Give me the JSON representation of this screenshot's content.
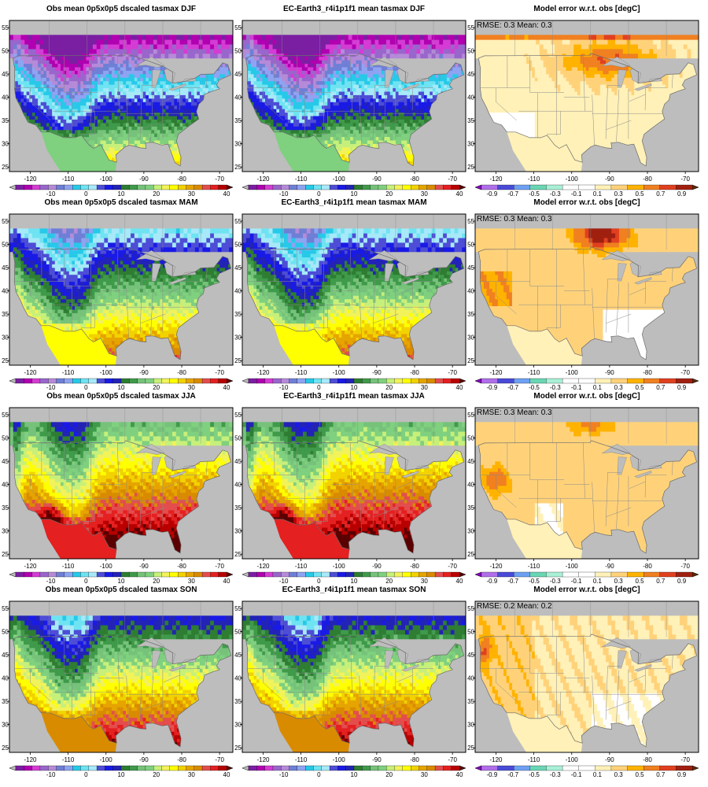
{
  "figure": {
    "background_colors": {
      "land_gray": "#bdbdbd",
      "border_gray": "#7f7f7f",
      "frame": "#000000"
    },
    "x_ticks": [
      -120,
      -110,
      -100,
      -90,
      -80,
      -70
    ],
    "y_ticks": [
      25,
      30,
      35,
      40,
      45,
      50,
      55
    ],
    "temperature_colorbar": {
      "colors": [
        "#bdbdbd",
        "#7b1fa2",
        "#b000b0",
        "#d43cd4",
        "#9966cc",
        "#b58bd8",
        "#6f7fd6",
        "#8ea4f2",
        "#27c9e8",
        "#6fe3f2",
        "#a7e9f8",
        "#4d4dd6",
        "#1a1ae6",
        "#2323b5",
        "#2e7d32",
        "#3f9a4a",
        "#76c27a",
        "#7fd07f",
        "#c7f07a",
        "#f2f25a",
        "#ffff00",
        "#f2d200",
        "#e6a400",
        "#d98b00",
        "#e44d4d",
        "#e42020",
        "#b80000",
        "#5a0000"
      ],
      "tick_labels": [
        "-10",
        "0",
        "10",
        "20",
        "30",
        "40"
      ],
      "tick_values": [
        -10,
        0,
        10,
        20,
        30,
        40
      ],
      "range": [
        -20,
        40
      ]
    },
    "error_colorbar": {
      "colors": [
        "#8a00c8",
        "#b06ee8",
        "#4a4ad8",
        "#6ea0f2",
        "#69d6b4",
        "#a8f0d6",
        "#ffffff",
        "#ffffff",
        "#fff1b8",
        "#ffd27a",
        "#ffb300",
        "#f08020",
        "#e04020",
        "#a02010",
        "#5a2a00"
      ],
      "tick_labels": [
        "-0.9",
        "-0.7",
        "-0.5",
        "-0.3",
        "-0.1",
        "0.1",
        "0.3",
        "0.5",
        "0.7",
        "0.9"
      ],
      "tick_values": [
        -0.9,
        -0.7,
        -0.5,
        -0.3,
        -0.1,
        0.1,
        0.3,
        0.5,
        0.7,
        0.9
      ],
      "range": [
        -1.0,
        1.0
      ]
    },
    "panels": [
      {
        "row": 0,
        "col": 0,
        "title": "Obs mean 0p5x0p5 dscaled tasmax DJF",
        "kind": "temperature",
        "season": "DJF"
      },
      {
        "row": 0,
        "col": 1,
        "title": "EC-Earth3_r4i1p1f1 mean tasmax DJF",
        "kind": "temperature",
        "season": "DJF"
      },
      {
        "row": 0,
        "col": 2,
        "title": "Model error w.r.t. obs [degC]",
        "kind": "error",
        "season": "DJF",
        "stats": "RMSE: 0.3  Mean: 0.3"
      },
      {
        "row": 1,
        "col": 0,
        "title": "Obs mean 0p5x0p5 dscaled tasmax MAM",
        "kind": "temperature",
        "season": "MAM"
      },
      {
        "row": 1,
        "col": 1,
        "title": "EC-Earth3_r4i1p1f1 mean tasmax MAM",
        "kind": "temperature",
        "season": "MAM"
      },
      {
        "row": 1,
        "col": 2,
        "title": "Model error w.r.t. obs [degC]",
        "kind": "error",
        "season": "MAM",
        "stats": "RMSE: 0.3  Mean: 0.3"
      },
      {
        "row": 2,
        "col": 0,
        "title": "Obs mean 0p5x0p5 dscaled tasmax JJA",
        "kind": "temperature",
        "season": "JJA"
      },
      {
        "row": 2,
        "col": 1,
        "title": "EC-Earth3_r4i1p1f1 mean tasmax JJA",
        "kind": "temperature",
        "season": "JJA"
      },
      {
        "row": 2,
        "col": 2,
        "title": "Model error w.r.t. obs [degC]",
        "kind": "error",
        "season": "JJA",
        "stats": "RMSE: 0.3  Mean: 0.3"
      },
      {
        "row": 3,
        "col": 0,
        "title": "Obs mean 0p5x0p5 dscaled tasmax SON",
        "kind": "temperature",
        "season": "SON"
      },
      {
        "row": 3,
        "col": 1,
        "title": "EC-Earth3_r4i1p1f1 mean tasmax SON",
        "kind": "temperature",
        "season": "SON"
      },
      {
        "row": 3,
        "col": 2,
        "title": "Model error w.r.t. obs [degC]",
        "kind": "error",
        "season": "SON",
        "stats": "RMSE: 0.2  Mean: 0.2"
      }
    ]
  }
}
